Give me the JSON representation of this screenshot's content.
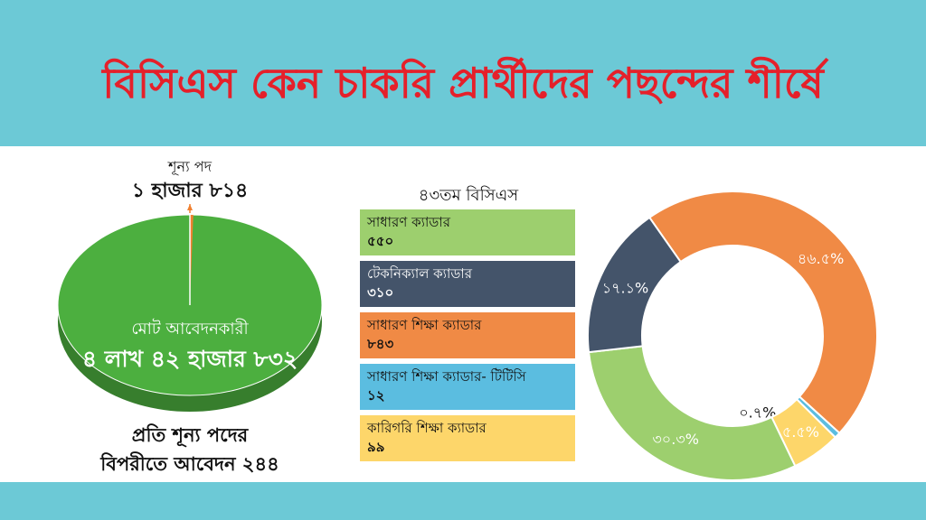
{
  "title": "বিসিএস কেন চাকরি প্রার্থীদের পছন্দের শীর্ষে",
  "vacancies": {
    "label": "শূন্য পদ",
    "value": "১ হাজার ৮১৪"
  },
  "applicants": {
    "label": "মোট আবেদনকারী",
    "value": "৪ লাখ ৪২ হাজার ৮৩২"
  },
  "ratio": {
    "line1": "প্রতি শূন্য পদের",
    "line2": "বিপরীতে আবেদন ২৪৪"
  },
  "bcs_heading": "৪৩তম বিসিএস",
  "chart_data": [
    {
      "type": "pie",
      "slices": [
        {
          "name": "মোট আবেদনকারী",
          "value": 442832,
          "color": "#4caf3f"
        },
        {
          "name": "শূন্য পদ",
          "value": 1814,
          "color": "#f08030"
        }
      ]
    },
    {
      "type": "pie",
      "title": "৪৩তম বিসিএস",
      "slices": [
        {
          "name": "সাধারণ ক্যাডার",
          "value_text": "৫৫০",
          "value": 550,
          "percent": 30.3,
          "label": "৩০.৩%",
          "color": "#9dcf6e"
        },
        {
          "name": "টেকনিক্যাল ক্যাডার",
          "value_text": "৩১০",
          "value": 310,
          "percent": 17.1,
          "label": "১৭.১%",
          "color": "#44546a"
        },
        {
          "name": "সাধারণ শিক্ষা ক্যাডার",
          "value_text": "৮৪৩",
          "value": 843,
          "percent": 46.5,
          "label": "৪৬.৫%",
          "color": "#f08a45"
        },
        {
          "name": "সাধারণ শিক্ষা ক্যাডার- টিটিসি",
          "value_text": "১২",
          "value": 12,
          "percent": 0.7,
          "label": "০.৭%",
          "color": "#5bbde0"
        },
        {
          "name": "কারিগরি শিক্ষা ক্যাডার",
          "value_text": "৯৯",
          "value": 99,
          "percent": 5.5,
          "label": "৫.৫%",
          "color": "#fdd66a"
        }
      ]
    }
  ]
}
